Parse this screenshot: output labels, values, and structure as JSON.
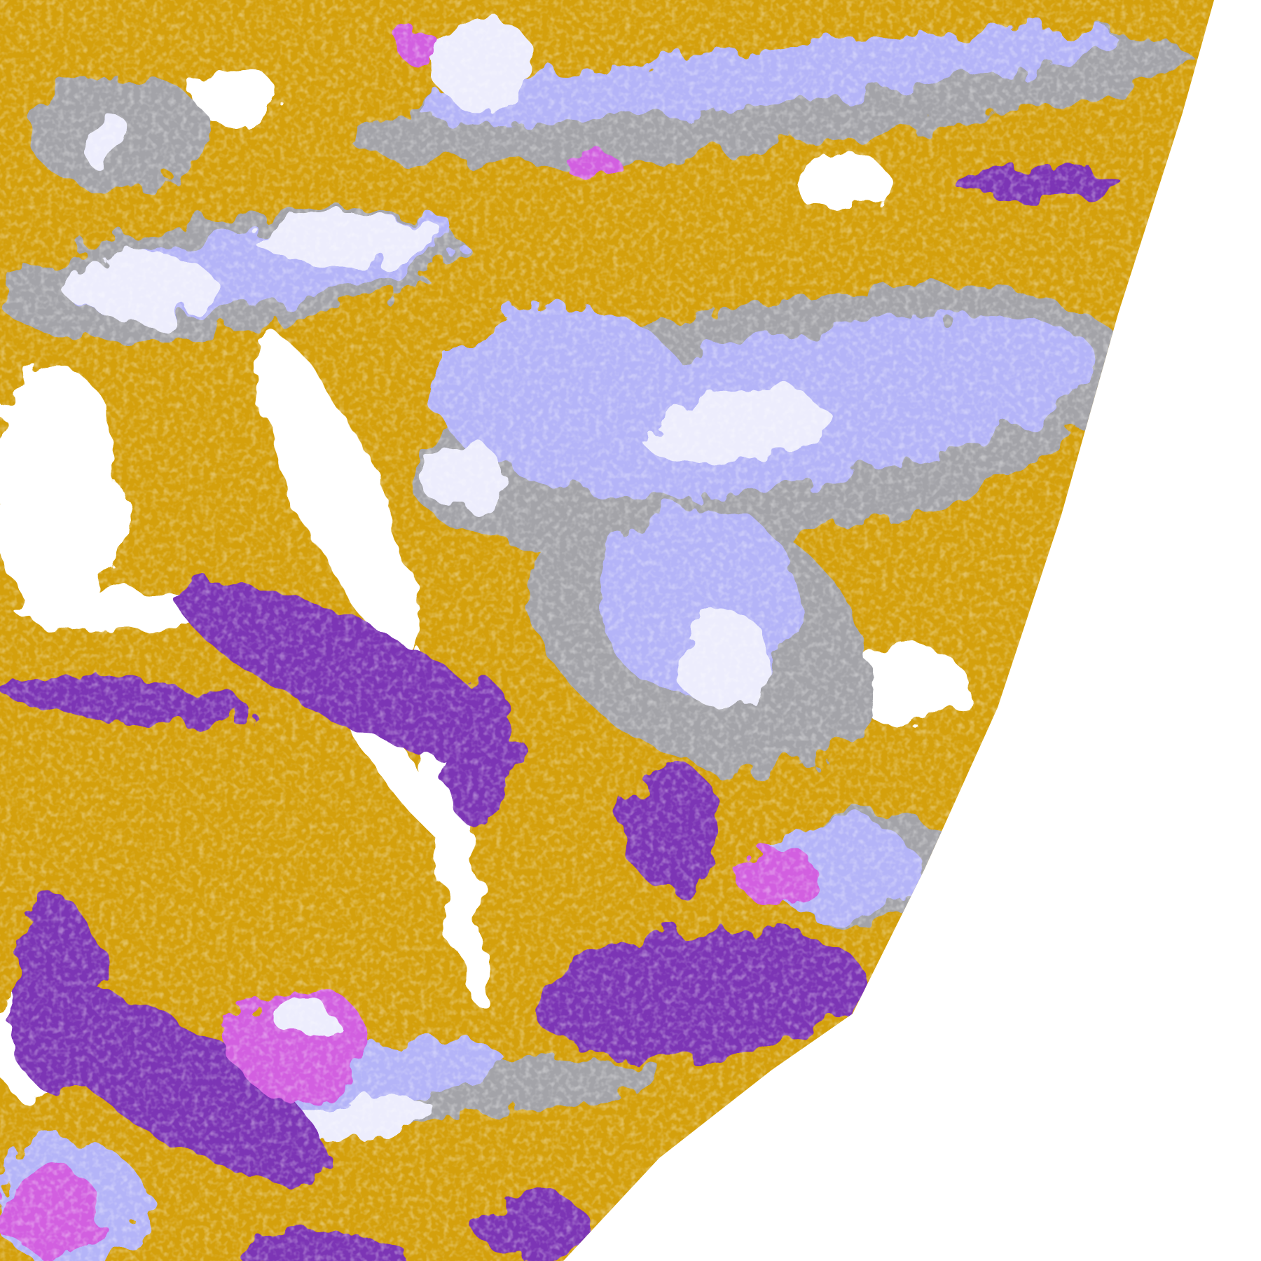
{
  "map": {
    "colors": {
      "background": "#ffffff",
      "gold": "#d4a00c",
      "purple": "#7b35b5",
      "magenta": "#d25ee0",
      "lavender": "#b4b4f8",
      "pale": "#ededfd",
      "gray": "#a3a3a8"
    }
  }
}
